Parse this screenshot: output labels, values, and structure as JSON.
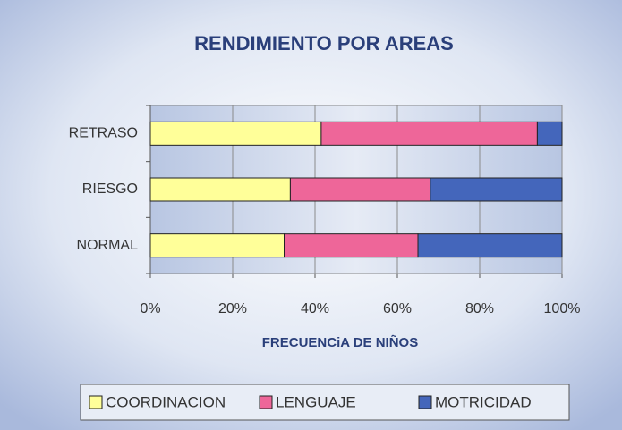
{
  "chart_data": {
    "type": "bar",
    "orientation": "horizontal",
    "stacked": true,
    "title": "RENDIMIENTO POR AREAS",
    "x_label": "FRECUENCiA DE NIÑOS",
    "categories": [
      "RETRASO",
      "RIESGO",
      "NORMAL"
    ],
    "series": [
      {
        "name": "COORDINACION",
        "color": "#ffff99",
        "values": [
          41.5,
          34,
          32.5
        ]
      },
      {
        "name": "LENGUAJE",
        "color": "#ee6699",
        "values": [
          52.5,
          34,
          32.5
        ]
      },
      {
        "name": "MOTRICIDAD",
        "color": "#4466bb",
        "values": [
          6,
          32,
          35
        ]
      }
    ],
    "xlim": [
      0,
      100
    ],
    "xticks": [
      {
        "value": 0,
        "label": "0%"
      },
      {
        "value": 20,
        "label": "20%"
      },
      {
        "value": 40,
        "label": "40%"
      },
      {
        "value": 60,
        "label": "60%"
      },
      {
        "value": 80,
        "label": "80%"
      },
      {
        "value": 100,
        "label": "100%"
      }
    ],
    "grid": true,
    "legend": "bottom"
  }
}
